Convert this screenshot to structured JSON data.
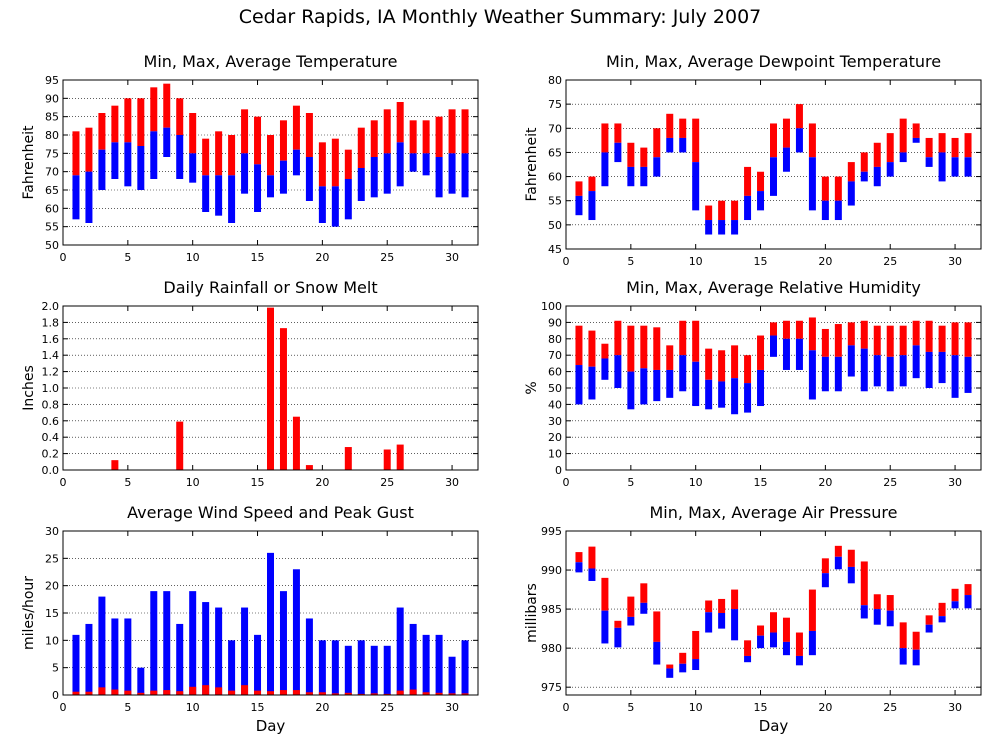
{
  "page_title": "Cedar Rapids, IA Monthly Weather Summary: July 2007",
  "colors": {
    "range": "#ff0000",
    "lower": "#0000ff",
    "frame": "#000000",
    "grid": "#000000"
  },
  "chart_data": [
    {
      "id": "temperature",
      "type": "bar",
      "title": "Min, Max, Average Temperature",
      "ylabel": "Fahrenheit",
      "xlabel": "",
      "ylim": [
        50,
        95
      ],
      "yticks": [
        "50",
        "55",
        "60",
        "65",
        "70",
        "75",
        "80",
        "85",
        "90",
        "95"
      ],
      "xlim": [
        0,
        32
      ],
      "xticks": [
        "0",
        "5",
        "10",
        "15",
        "20",
        "25",
        "30"
      ],
      "grid": true,
      "series": [
        {
          "name": "min",
          "values": [
            57,
            56,
            65,
            68,
            66,
            65,
            68,
            74,
            68,
            67,
            59,
            58,
            56,
            64,
            59,
            63,
            64,
            69,
            62,
            56,
            55,
            57,
            62,
            63,
            64,
            66,
            70,
            69,
            63,
            64,
            63
          ]
        },
        {
          "name": "avg",
          "values": [
            69,
            70,
            76,
            78,
            78,
            77,
            81,
            82,
            80,
            75,
            69,
            69,
            69,
            75,
            72,
            69,
            73,
            76,
            74,
            66,
            66,
            68,
            71,
            74,
            75,
            78,
            75,
            75,
            74,
            75,
            75
          ]
        },
        {
          "name": "max",
          "values": [
            81,
            82,
            86,
            88,
            90,
            90,
            93,
            94,
            90,
            86,
            79,
            81,
            80,
            87,
            85,
            80,
            84,
            88,
            86,
            78,
            79,
            76,
            82,
            84,
            87,
            89,
            84,
            84,
            85,
            87,
            87
          ]
        }
      ]
    },
    {
      "id": "dewpoint",
      "type": "bar",
      "title": "Min, Max, Average Dewpoint Temperature",
      "ylabel": "Fahrenheit",
      "xlabel": "",
      "ylim": [
        45,
        80
      ],
      "yticks": [
        "45",
        "50",
        "55",
        "60",
        "65",
        "70",
        "75",
        "80"
      ],
      "xlim": [
        0,
        32
      ],
      "xticks": [
        "0",
        "5",
        "10",
        "15",
        "20",
        "25",
        "30"
      ],
      "grid": true,
      "series": [
        {
          "name": "min",
          "values": [
            52,
            51,
            58,
            63,
            58,
            58,
            60,
            65,
            65,
            53,
            48,
            48,
            48,
            51,
            53,
            56,
            61,
            65,
            53,
            51,
            51,
            54,
            59,
            58,
            60,
            63,
            67,
            62,
            59,
            60,
            60
          ]
        },
        {
          "name": "avg",
          "values": [
            56,
            57,
            65,
            67,
            62,
            62,
            64,
            68,
            68,
            63,
            51,
            51,
            51,
            56,
            57,
            64,
            66,
            70,
            64,
            55,
            55,
            59,
            61,
            62,
            63,
            65,
            68,
            64,
            65,
            64,
            64
          ]
        },
        {
          "name": "max",
          "values": [
            59,
            60,
            71,
            71,
            67,
            66,
            70,
            73,
            72,
            72,
            54,
            55,
            55,
            62,
            61,
            71,
            72,
            75,
            71,
            60,
            60,
            63,
            65,
            67,
            69,
            72,
            71,
            68,
            69,
            68,
            69
          ]
        }
      ]
    },
    {
      "id": "rainfall",
      "type": "bar",
      "title": "Daily Rainfall or Snow Melt",
      "ylabel": "Inches",
      "xlabel": "",
      "ylim": [
        0,
        2.0
      ],
      "yticks": [
        "0.0",
        "0.2",
        "0.4",
        "0.6",
        "0.8",
        "1.0",
        "1.2",
        "1.4",
        "1.6",
        "1.8",
        "2.0"
      ],
      "xlim": [
        0,
        32
      ],
      "xticks": [
        "0",
        "5",
        "10",
        "15",
        "20",
        "25",
        "30"
      ],
      "grid": true,
      "series": [
        {
          "name": "rainfall",
          "values": [
            0,
            0,
            0,
            0.12,
            0,
            0,
            0,
            0,
            0.59,
            0,
            0,
            0,
            0,
            0,
            0,
            1.98,
            1.73,
            0.65,
            0.06,
            0,
            0,
            0.28,
            0,
            0,
            0.25,
            0.31,
            0,
            0,
            0,
            0,
            0
          ]
        }
      ]
    },
    {
      "id": "humidity",
      "type": "bar",
      "title": "Min, Max, Average Relative Humidity",
      "ylabel": "%",
      "xlabel": "",
      "ylim": [
        0,
        100
      ],
      "yticks": [
        "0",
        "10",
        "20",
        "30",
        "40",
        "50",
        "60",
        "70",
        "80",
        "90",
        "100"
      ],
      "xlim": [
        0,
        32
      ],
      "xticks": [
        "0",
        "5",
        "10",
        "15",
        "20",
        "25",
        "30"
      ],
      "grid": true,
      "series": [
        {
          "name": "min",
          "values": [
            40,
            43,
            55,
            50,
            37,
            40,
            42,
            44,
            48,
            39,
            37,
            38,
            34,
            35,
            39,
            69,
            61,
            61,
            43,
            48,
            48,
            57,
            48,
            51,
            48,
            51,
            56,
            50,
            53,
            44,
            47
          ]
        },
        {
          "name": "avg",
          "values": [
            64,
            63,
            68,
            70,
            60,
            62,
            61,
            61,
            70,
            66,
            55,
            54,
            56,
            53,
            61,
            82,
            80,
            80,
            73,
            69,
            69,
            76,
            74,
            70,
            69,
            70,
            76,
            72,
            72,
            70,
            69
          ]
        },
        {
          "name": "max",
          "values": [
            88,
            85,
            77,
            91,
            88,
            88,
            87,
            76,
            91,
            91,
            74,
            73,
            76,
            70,
            82,
            90,
            91,
            91,
            93,
            86,
            89,
            90,
            91,
            88,
            88,
            88,
            91,
            91,
            88,
            90,
            90
          ]
        }
      ]
    },
    {
      "id": "wind",
      "type": "bar",
      "title": "Average Wind Speed and Peak Gust",
      "ylabel": "miles/hour",
      "xlabel": "Day",
      "ylim": [
        0,
        30
      ],
      "yticks": [
        "0",
        "5",
        "10",
        "15",
        "20",
        "25",
        "30"
      ],
      "xlim": [
        0,
        32
      ],
      "xticks": [
        "0",
        "5",
        "10",
        "15",
        "20",
        "25",
        "30"
      ],
      "grid": true,
      "series": [
        {
          "name": "average",
          "values": [
            0.6,
            0.6,
            1.4,
            1.0,
            0.8,
            0.4,
            0.8,
            0.9,
            0.7,
            1.5,
            1.8,
            1.4,
            0.8,
            1.8,
            0.8,
            0.7,
            0.9,
            0.9,
            0.5,
            0.5,
            0.3,
            0.4,
            0.2,
            0.3,
            0.2,
            0.8,
            1.0,
            0.5,
            0.4,
            0.3,
            0.3
          ]
        },
        {
          "name": "peak_gust",
          "values": [
            11,
            13,
            18,
            14,
            14,
            5,
            19,
            19,
            13,
            19,
            17,
            16,
            10,
            16,
            11,
            26,
            19,
            23,
            14,
            10,
            10,
            9,
            10,
            9,
            9,
            16,
            13,
            11,
            11,
            7,
            10
          ]
        }
      ]
    },
    {
      "id": "pressure",
      "type": "bar",
      "title": "Min, Max, Average Air Pressure",
      "ylabel": "millibars",
      "xlabel": "Day",
      "ylim": [
        974,
        995
      ],
      "yticks": [
        "975",
        "980",
        "985",
        "990",
        "995"
      ],
      "ytick_values": [
        975,
        980,
        985,
        990,
        995
      ],
      "xlim": [
        0,
        32
      ],
      "xticks": [
        "0",
        "5",
        "10",
        "15",
        "20",
        "25",
        "30"
      ],
      "grid": true,
      "series": [
        {
          "name": "min",
          "values": [
            989.7,
            988.6,
            980.6,
            980.1,
            982.9,
            984.4,
            977.9,
            976.2,
            976.9,
            977.2,
            982.0,
            982.5,
            981.0,
            978.2,
            980.0,
            980.1,
            979.1,
            977.8,
            979.1,
            987.8,
            990.1,
            988.3,
            983.8,
            983.0,
            982.8,
            977.9,
            977.8,
            982.0,
            983.3,
            985.1,
            985.1
          ]
        },
        {
          "name": "avg",
          "values": [
            991.0,
            990.2,
            984.8,
            982.6,
            984.0,
            985.8,
            980.8,
            977.4,
            978.0,
            978.6,
            984.6,
            984.5,
            985.0,
            979.0,
            981.6,
            982.0,
            980.8,
            979.0,
            982.2,
            989.6,
            991.7,
            990.4,
            985.5,
            985.0,
            984.8,
            980.0,
            979.8,
            983.0,
            984.1,
            986.0,
            986.8
          ]
        },
        {
          "name": "max",
          "values": [
            992.3,
            993.0,
            989.0,
            983.5,
            986.6,
            988.3,
            984.7,
            977.9,
            979.4,
            982.2,
            986.1,
            986.3,
            987.5,
            981.0,
            982.9,
            984.6,
            983.9,
            982.0,
            987.5,
            991.5,
            993.1,
            992.6,
            991.1,
            986.9,
            986.8,
            983.3,
            982.1,
            984.2,
            985.8,
            987.6,
            988.2
          ]
        }
      ]
    }
  ]
}
